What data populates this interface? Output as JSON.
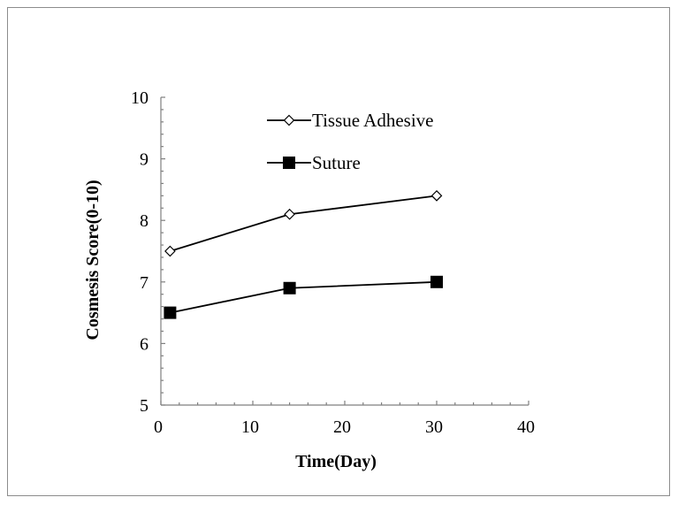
{
  "chart_data": {
    "type": "line",
    "title": "",
    "xlabel": "Time(Day)",
    "ylabel": "Cosmesis Score(0-10)",
    "xlim": [
      0,
      40
    ],
    "ylim": [
      5,
      10
    ],
    "x_ticks": [
      "0",
      "10",
      "20",
      "30",
      "40"
    ],
    "y_ticks": [
      "5",
      "6",
      "7",
      "8",
      "9",
      "10"
    ],
    "grid": false,
    "legend_position": "top-left-inside",
    "series": [
      {
        "name": "Tissue Adhesive",
        "marker": "open-diamond",
        "color": "#000000",
        "x": [
          1,
          14,
          30
        ],
        "y": [
          7.5,
          8.1,
          8.4
        ]
      },
      {
        "name": "Suture",
        "marker": "filled-square",
        "color": "#000000",
        "x": [
          1,
          14,
          30
        ],
        "y": [
          6.5,
          6.9,
          7.0
        ]
      }
    ]
  }
}
